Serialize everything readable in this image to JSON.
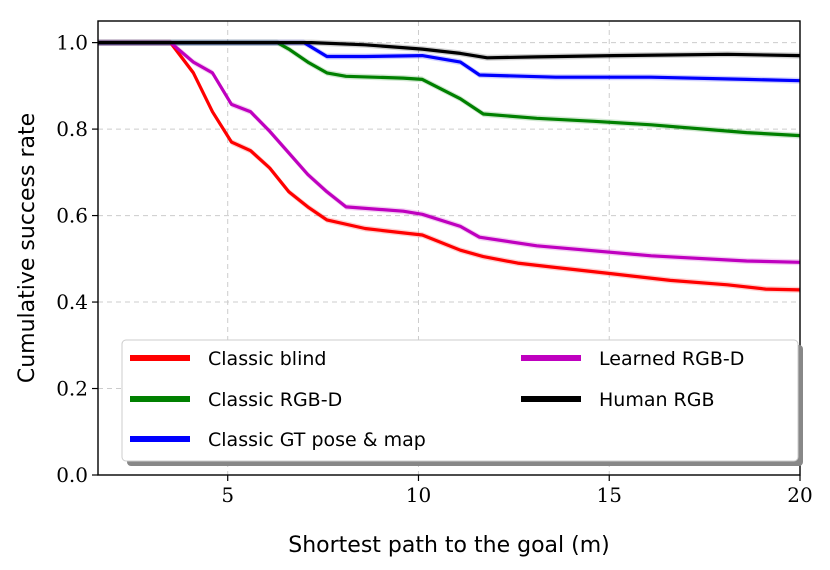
{
  "chart_data": {
    "type": "line",
    "xlabel": "Shortest path to the goal (m)",
    "ylabel": "Cumulative success rate",
    "xlim": [
      1.6,
      20
    ],
    "ylim": [
      0,
      1.05
    ],
    "x_ticks": [
      5,
      10,
      15,
      20
    ],
    "y_ticks": [
      0.0,
      0.2,
      0.4,
      0.6,
      0.8,
      1.0
    ],
    "x_tick_labels": [
      "5",
      "10",
      "15",
      "20"
    ],
    "y_tick_labels": [
      "0.0",
      "0.2",
      "0.4",
      "0.6",
      "0.8",
      "1.0"
    ],
    "grid": true,
    "legend_placement": "lower-left",
    "series": [
      {
        "name": "Classic blind",
        "color": "#ff0000",
        "x": [
          1.6,
          3.5,
          4.1,
          4.6,
          5.1,
          5.6,
          6.1,
          6.6,
          7.1,
          7.6,
          8.6,
          9.6,
          10.1,
          11.1,
          11.7,
          12.6,
          13.6,
          15.1,
          16.6,
          18.1,
          19.1,
          20.0
        ],
        "y": [
          1.0,
          1.0,
          0.93,
          0.84,
          0.77,
          0.75,
          0.71,
          0.655,
          0.62,
          0.59,
          0.57,
          0.56,
          0.555,
          0.52,
          0.505,
          0.49,
          0.48,
          0.465,
          0.45,
          0.44,
          0.43,
          0.428
        ]
      },
      {
        "name": "Classic RGB-D",
        "color": "#008000",
        "x": [
          1.6,
          6.3,
          6.6,
          7.1,
          7.6,
          8.1,
          9.6,
          10.1,
          11.1,
          11.7,
          13.1,
          14.6,
          16.1,
          18.6,
          20.0
        ],
        "y": [
          1.0,
          1.0,
          0.985,
          0.955,
          0.93,
          0.922,
          0.918,
          0.915,
          0.87,
          0.835,
          0.825,
          0.818,
          0.81,
          0.792,
          0.785
        ]
      },
      {
        "name": "Classic GT pose & map",
        "color": "#0000ff",
        "x": [
          1.6,
          7.0,
          7.6,
          8.6,
          10.1,
          11.1,
          11.6,
          13.6,
          16.1,
          18.6,
          20.0
        ],
        "y": [
          1.0,
          1.0,
          0.968,
          0.968,
          0.97,
          0.955,
          0.925,
          0.92,
          0.92,
          0.915,
          0.912
        ]
      },
      {
        "name": "Learned RGB-D",
        "color": "#bf00bf",
        "x": [
          1.6,
          3.5,
          4.1,
          4.6,
          5.1,
          5.6,
          6.1,
          6.6,
          7.1,
          7.6,
          8.1,
          9.6,
          10.1,
          11.1,
          11.6,
          13.1,
          16.1,
          18.6,
          20.0
        ],
        "y": [
          1.0,
          1.0,
          0.955,
          0.93,
          0.857,
          0.84,
          0.795,
          0.745,
          0.695,
          0.655,
          0.62,
          0.61,
          0.603,
          0.575,
          0.55,
          0.53,
          0.507,
          0.495,
          0.492
        ]
      },
      {
        "name": "Human RGB",
        "color": "#000000",
        "x": [
          1.6,
          7.2,
          8.6,
          10.1,
          11.1,
          11.8,
          13.1,
          15.1,
          18.1,
          20.0
        ],
        "y": [
          1.0,
          1.0,
          0.995,
          0.985,
          0.975,
          0.965,
          0.967,
          0.97,
          0.973,
          0.97
        ]
      }
    ]
  }
}
